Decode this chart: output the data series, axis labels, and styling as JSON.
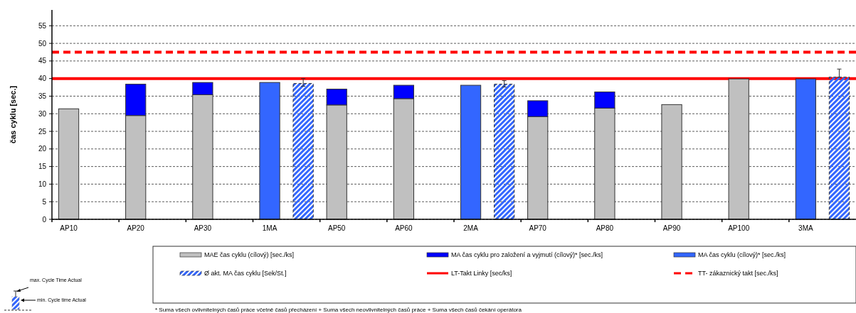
{
  "chart_data": {
    "type": "bar",
    "ylabel": "čas cyklu [sec.]",
    "categories": [
      "AP10",
      null,
      "AP20",
      null,
      "AP30",
      null,
      "1MA",
      null,
      "AP50",
      null,
      "AP60",
      null,
      "2MA",
      null,
      "AP70",
      null,
      "AP80",
      null,
      "AP90",
      null,
      "AP100",
      null,
      "3MA",
      null
    ],
    "stacked": true,
    "series": [
      {
        "name": "MAE čas cyklu (cílový) [sec./ks]",
        "color": "#c0c0c0",
        "values": [
          31.4,
          null,
          29.5,
          null,
          35.4,
          null,
          null,
          null,
          32.5,
          null,
          34.3,
          null,
          null,
          null,
          29.2,
          null,
          31.6,
          null,
          32.6,
          null,
          39.9,
          null,
          null,
          null
        ]
      },
      {
        "name": "MA čas cyklu pro založení a vyjmutí (cílový)* [sec./ks]",
        "color": "#0000ff",
        "values": [
          null,
          null,
          8.9,
          null,
          3.5,
          null,
          null,
          null,
          4.5,
          null,
          3.8,
          null,
          null,
          null,
          4.5,
          null,
          4.6,
          null,
          null,
          null,
          null,
          null,
          null,
          null
        ]
      },
      {
        "name": "MA čas cyklu (cílový)* [sec./ks]",
        "color": "#3366ff",
        "values": [
          null,
          null,
          null,
          null,
          null,
          null,
          38.9,
          null,
          null,
          null,
          null,
          null,
          38.1,
          null,
          null,
          null,
          null,
          null,
          null,
          null,
          null,
          null,
          39.9,
          null
        ]
      },
      {
        "name": "Ø akt. MA čas cyklu [Sek/St.]",
        "color": "#3366ff",
        "values": [
          null,
          null,
          null,
          null,
          null,
          null,
          null,
          38.6,
          null,
          null,
          null,
          null,
          null,
          38.4,
          null,
          null,
          null,
          null,
          null,
          null,
          null,
          null,
          null,
          40.4
        ],
        "errors": [
          null,
          null,
          null,
          null,
          null,
          null,
          null,
          [
            37.8,
            40.0
          ],
          null,
          null,
          null,
          null,
          null,
          [
            37.6,
            39.4
          ],
          null,
          null,
          null,
          null,
          null,
          null,
          null,
          null,
          null,
          [
            40.4,
            42.7
          ]
        ]
      }
    ],
    "ylim": [
      0,
      59.5
    ],
    "yticks": [
      0,
      5,
      10,
      15,
      20,
      25,
      30,
      35,
      40,
      45,
      50,
      55
    ],
    "grid": "y",
    "legend": "bottom",
    "ref_lines": [
      {
        "axis": "y",
        "value": 40,
        "label": "LT-Takt Linky [sec/ks]",
        "color": "#ff0000",
        "line_style": "solid"
      },
      {
        "axis": "y",
        "value": 47.5,
        "label": "TT- zákaznický takt [sec./ks]",
        "color": "#ff0000",
        "line_style": "dashed"
      }
    ],
    "annotations": [
      "max. Cycle Time Actual",
      "min. Cycle time Actual",
      "*  Suma všech ovlivnitelných časů práce včetně časů přecházení + Suma  všech neovlivnitelných  časů práce  + Suma  všech  časů čekání operátora"
    ]
  }
}
